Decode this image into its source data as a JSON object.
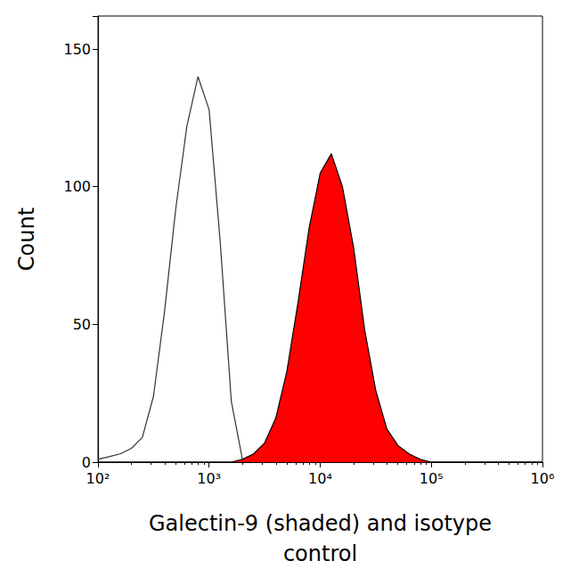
{
  "chart_data": {
    "type": "line",
    "x_label": "Galectin-9 (shaded) and isotype\ncontrol",
    "y_label": "Count",
    "log": "x",
    "grid": false,
    "xlim": [
      100,
      1000000
    ],
    "xticks": [
      {
        "value": 100,
        "label": "10²"
      },
      {
        "value": 1000,
        "label": "10³"
      },
      {
        "value": 10000,
        "label": "10⁴"
      },
      {
        "value": 100000,
        "label": "10⁵"
      },
      {
        "value": 1000000,
        "label": "10⁶"
      }
    ],
    "ylim": [
      0,
      162
    ],
    "yticks": [
      0,
      50,
      100,
      150
    ],
    "x": [
      100,
      126,
      158,
      200,
      251,
      316,
      398,
      501,
      631,
      794,
      1000,
      1259,
      1585,
      1995,
      2512,
      3162,
      3981,
      5012,
      6310,
      7943,
      10000,
      12589,
      15849,
      19953,
      25119,
      31623,
      39811,
      50119,
      63096,
      79433,
      100000,
      125893,
      158489,
      199526,
      251189,
      316228,
      398107,
      501187,
      630957,
      794328,
      1000000
    ],
    "series": [
      {
        "type": "line",
        "color": "#333333",
        "values": [
          1,
          2,
          3,
          5,
          9,
          24,
          55,
          92,
          122,
          140,
          128,
          80,
          22,
          1,
          0,
          0,
          0,
          0,
          0,
          0,
          0,
          0,
          0,
          0,
          0,
          0,
          0,
          0,
          0,
          0,
          0,
          0,
          0,
          0,
          0,
          0,
          0,
          0,
          0,
          0,
          0
        ]
      },
      {
        "type": "area",
        "color": "#ff0000",
        "values": [
          0,
          0,
          0,
          0,
          0,
          0,
          0,
          0,
          0,
          0,
          0,
          0,
          0,
          1,
          3,
          7,
          16,
          33,
          58,
          85,
          105,
          112,
          100,
          78,
          48,
          26,
          12,
          6,
          3,
          1,
          0,
          0,
          0,
          0,
          0,
          0,
          0,
          0,
          0,
          0,
          0
        ]
      }
    ]
  }
}
